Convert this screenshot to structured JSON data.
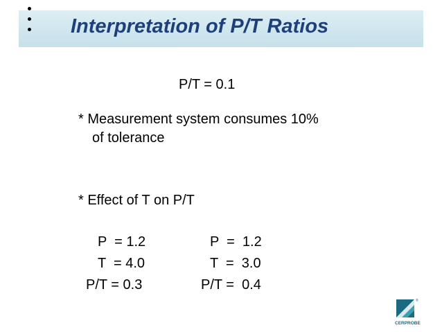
{
  "slide": {
    "title": "Interpretation of P/T Ratios",
    "headline": "P/T = 0.1",
    "bullet1_line1": "* Measurement system consumes 10%",
    "bullet1_line2": "of tolerance",
    "bullet2": "* Effect of T on P/T",
    "example_left": {
      "p": "P  = 1.2",
      "t": "T  = 4.0",
      "pt": "P/T = 0.3"
    },
    "example_right": {
      "p": "P  =  1.2",
      "t": "T  =  3.0",
      "pt": "P/T =  0.4"
    },
    "logo_text": "CERPROBE",
    "logo_mark": "®"
  },
  "colors": {
    "title": "#1f3f7a",
    "title_bar": "#c6e0ea",
    "logo": "#1a6a80"
  }
}
